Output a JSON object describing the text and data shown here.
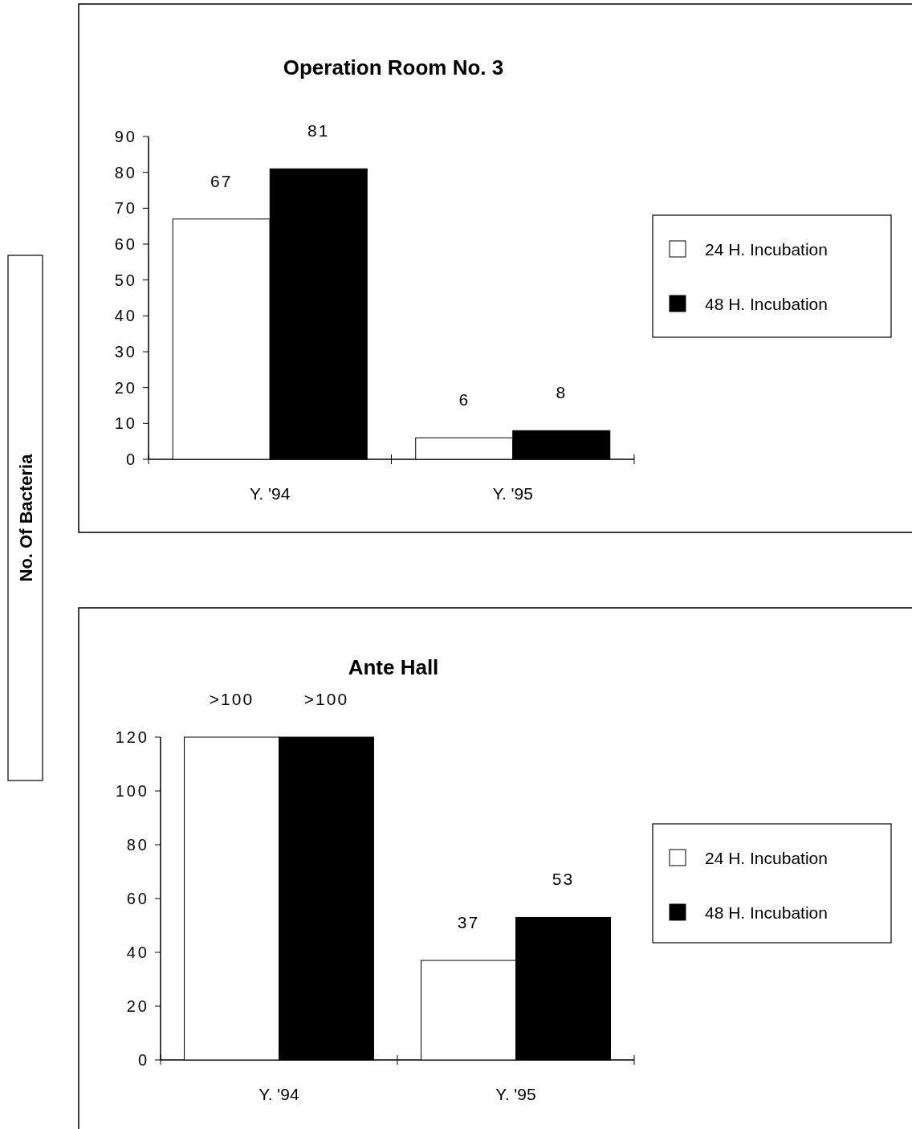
{
  "chart_data": [
    {
      "type": "bar",
      "title": "Operation Room No. 3",
      "ylabel": "No. Of Bacteria",
      "categories": [
        "Y. '94",
        "Y. '95"
      ],
      "series": [
        {
          "name": "24 H. Incubation",
          "color": "#ffffff",
          "values": [
            67,
            6
          ]
        },
        {
          "name": "48 H. Incubation",
          "color": "#000000",
          "values": [
            81,
            8
          ]
        }
      ],
      "ylim": [
        0,
        90
      ],
      "yticks": [
        0,
        10,
        20,
        30,
        40,
        50,
        60,
        70,
        80,
        90
      ],
      "data_labels": true,
      "legend": "right",
      "grid": false
    },
    {
      "type": "bar",
      "title": "Ante Hall",
      "categories": [
        "Y. '94",
        "Y. '95"
      ],
      "series": [
        {
          "name": "24 H. Incubation",
          "color": "#ffffff",
          "values": [
            120,
            37
          ],
          "value_labels": [
            ">100",
            "37"
          ]
        },
        {
          "name": "48 H. Incubation",
          "color": "#000000",
          "values": [
            120,
            53
          ],
          "value_labels": [
            ">100",
            "53"
          ]
        }
      ],
      "ylim": [
        0,
        120
      ],
      "yticks": [
        0,
        20,
        40,
        60,
        80,
        100,
        120
      ],
      "legend": "right",
      "grid": false
    }
  ]
}
